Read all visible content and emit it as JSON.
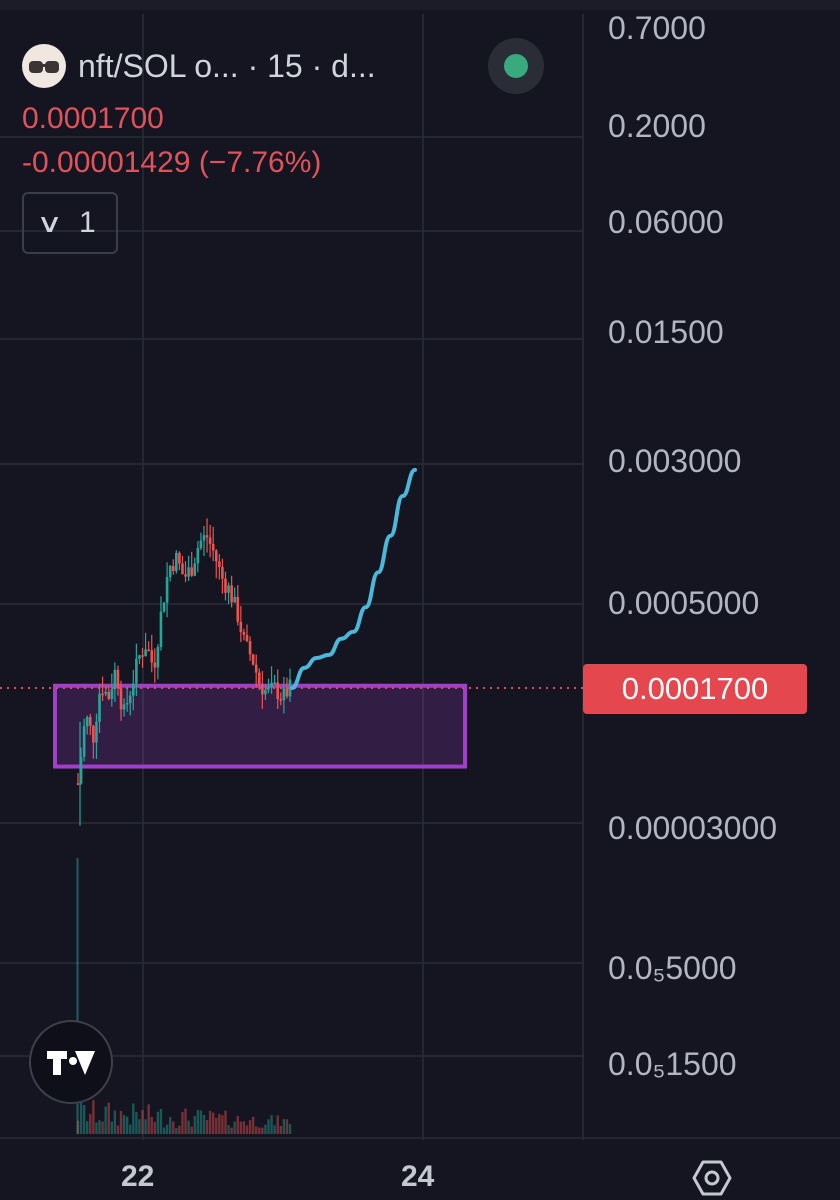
{
  "header": {
    "symbol": "nft/SOL o...",
    "interval": "15",
    "suffix": "d...",
    "separator": "·",
    "logo_icon": "nft-token-logo",
    "live_indicator_color": "#39a97f"
  },
  "legend": {
    "last_price": "0.0001700",
    "change": "-0.00001429 (−7.76%)",
    "toggle_chevron": "∨",
    "indicators_count": "1"
  },
  "chart_data": {
    "type": "candlestick",
    "scale": "log",
    "x_ticks": [
      "22",
      "24"
    ],
    "y_ticks": [
      "0.7000",
      "0.2000",
      "0.06000",
      "0.01500",
      "0.003000",
      "0.0005000",
      "0.00003000",
      "0.0₅5000",
      "0.0₅1500"
    ],
    "y_tick_values": [
      0.7,
      0.2,
      0.06,
      0.015,
      0.003,
      0.0005,
      3e-05,
      5e-06,
      1.5e-06
    ],
    "current_price": {
      "label": "0.0001700",
      "value": 0.00017
    },
    "price_path_close": [
      5e-05,
      0.00012,
      9e-05,
      0.00018,
      0.00015,
      0.00022,
      0.00012,
      0.00017,
      0.00025,
      0.0003,
      0.00022,
      0.00045,
      0.0008,
      0.0009,
      0.0007,
      0.0008,
      0.0011,
      0.0012,
      0.00095,
      0.0007,
      0.0006,
      0.00045,
      0.0003,
      0.00025,
      0.00018,
      0.00016,
      0.00017,
      0.00015,
      0.00017
    ],
    "projection": [
      0.00017,
      0.00022,
      0.00025,
      0.00026,
      0.00032,
      0.00035,
      0.00048,
      0.00075,
      0.0012,
      0.002,
      0.0028
    ],
    "support_zone": {
      "top": 0.000175,
      "bottom": 6.2e-05
    },
    "colors": {
      "up": "#26a69a",
      "down": "#ef5350",
      "projection": "#4bb7d9",
      "zone": "#a040c8",
      "price_line": "#e5474f"
    },
    "grid": true
  },
  "footer": {
    "tradingview_icon": "tradingview-logo-icon",
    "settings_icon": "settings-hexagon-icon"
  }
}
